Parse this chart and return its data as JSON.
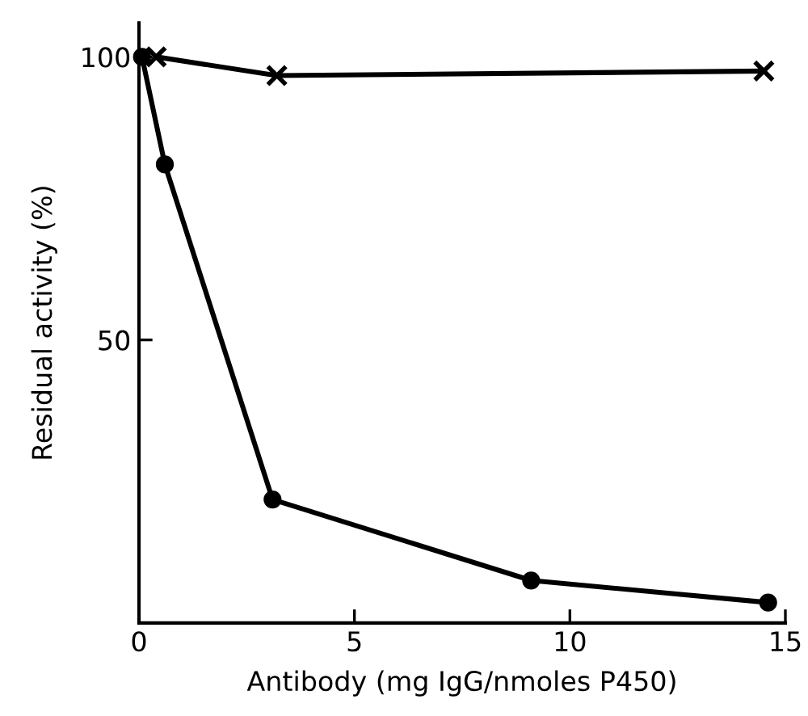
{
  "chart_data": {
    "type": "line",
    "xlabel": "Antibody (mg IgG/nmoles P450)",
    "ylabel": "Residual activity (%)",
    "xlim": [
      0,
      15
    ],
    "ylim": [
      0,
      106
    ],
    "xticks": [
      0,
      5,
      10,
      15
    ],
    "yticks": [
      50,
      100
    ],
    "grid": false,
    "series": [
      {
        "color": "#000000",
        "marker": "circle",
        "x": [
          0.07,
          0.6,
          3.1,
          9.1,
          14.6
        ],
        "values": [
          100,
          81,
          21.8,
          7.5,
          3.6
        ]
      },
      {
        "color": "#000000",
        "marker": "cross",
        "x": [
          0.4,
          3.2,
          14.5
        ],
        "values": [
          100,
          96.7,
          97.5
        ]
      }
    ]
  }
}
